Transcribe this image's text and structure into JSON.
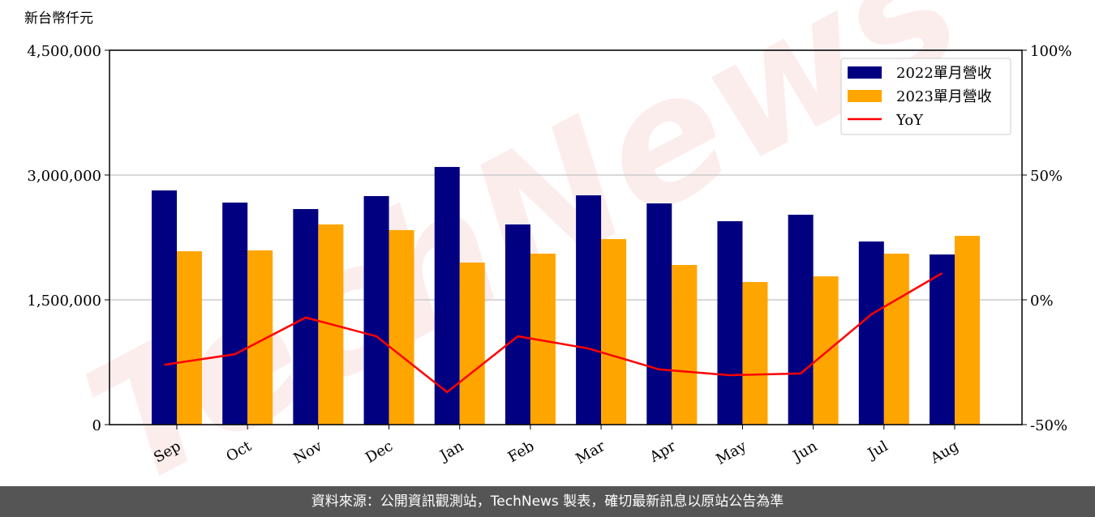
{
  "chart_data": {
    "type": "bar",
    "y_label": "新台幣仟元",
    "watermark": "TechNews",
    "categories": [
      "Sep",
      "Oct",
      "Nov",
      "Dec",
      "Jan",
      "Feb",
      "Mar",
      "Apr",
      "May",
      "Jun",
      "Jul",
      "Aug"
    ],
    "series": [
      {
        "name": "2022單月營收",
        "color": "#000080",
        "values": [
          2815000,
          2669000,
          2591000,
          2747000,
          3097000,
          2406000,
          2756000,
          2659000,
          2445000,
          2523000,
          2201000,
          2045000
        ]
      },
      {
        "name": "2023單月營收",
        "color": "#ffa500",
        "values": [
          2084000,
          2094000,
          2406000,
          2338000,
          1948000,
          2055000,
          2230000,
          1919000,
          1714000,
          1782000,
          2055000,
          2269000
        ]
      },
      {
        "name": "YoY",
        "color": "#ff0000",
        "type": "line",
        "axis": "y2",
        "values": [
          -26.0,
          -21.8,
          -7.1,
          -14.6,
          -37.0,
          -14.6,
          -19.5,
          -27.9,
          -30.2,
          -29.5,
          -5.8,
          10.7
        ]
      }
    ],
    "ylim": [
      0,
      4500000
    ],
    "yticks": [
      0,
      {
        "value": 1500000,
        "label": "1,500,000"
      },
      {
        "value": 3000000,
        "label": "3,000,000"
      },
      {
        "value": 4500000,
        "label": "4,500,000"
      }
    ],
    "y2lim": [
      -50,
      100
    ],
    "y2ticks": [
      {
        "value": -50,
        "label": "-50%"
      },
      {
        "value": 0,
        "label": "0%"
      },
      {
        "value": 50,
        "label": "50%"
      },
      {
        "value": 100,
        "label": "100%"
      }
    ],
    "grid": true,
    "legend": "upper right",
    "footer": "資料來源：公開資訊觀測站，TechNews 製表，確切最新訊息以原站公告為準"
  }
}
